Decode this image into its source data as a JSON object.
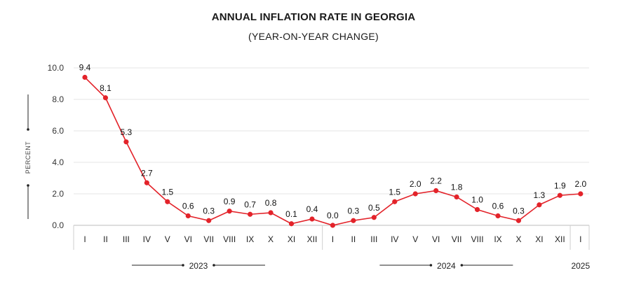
{
  "title": "ANNUAL INFLATION RATE IN GEORGIA",
  "subtitle": "(YEAR-ON-YEAR CHANGE)",
  "chart_data": {
    "type": "line",
    "ylabel": "PERCENT",
    "ylim": [
      0,
      10
    ],
    "yticks": [
      "0.0",
      "2.0",
      "4.0",
      "6.0",
      "8.0",
      "10.0"
    ],
    "grid": true,
    "categories": [
      "I",
      "II",
      "III",
      "IV",
      "V",
      "VI",
      "VII",
      "VIII",
      "IX",
      "X",
      "XI",
      "XII",
      "I",
      "II",
      "III",
      "IV",
      "V",
      "VI",
      "VII",
      "VIII",
      "IX",
      "X",
      "XI",
      "XII",
      "I"
    ],
    "years": [
      {
        "label": "2023",
        "start": 0,
        "end": 11
      },
      {
        "label": "2024",
        "start": 12,
        "end": 23
      },
      {
        "label": "2025",
        "start": 24,
        "end": 24
      }
    ],
    "series": [
      {
        "values": [
          9.4,
          8.1,
          5.3,
          2.7,
          1.5,
          0.6,
          0.3,
          0.9,
          0.7,
          0.8,
          0.1,
          0.4,
          0.0,
          0.3,
          0.5,
          1.5,
          2.0,
          2.2,
          1.8,
          1.0,
          0.6,
          0.3,
          1.3,
          1.9,
          2.0
        ],
        "labels": [
          "9.4",
          "8.1",
          "5.3",
          "2.7",
          "1.5",
          "0.6",
          "0.3",
          "0.9",
          "0.7",
          "0.8",
          "0.1",
          "0.4",
          "0.0",
          "0.3",
          "0.5",
          "1.5",
          "2.0",
          "2.2",
          "1.8",
          "1.0",
          "0.6",
          "0.3",
          "1.3",
          "1.9",
          "2.0"
        ],
        "color": "#e3232a"
      }
    ]
  }
}
